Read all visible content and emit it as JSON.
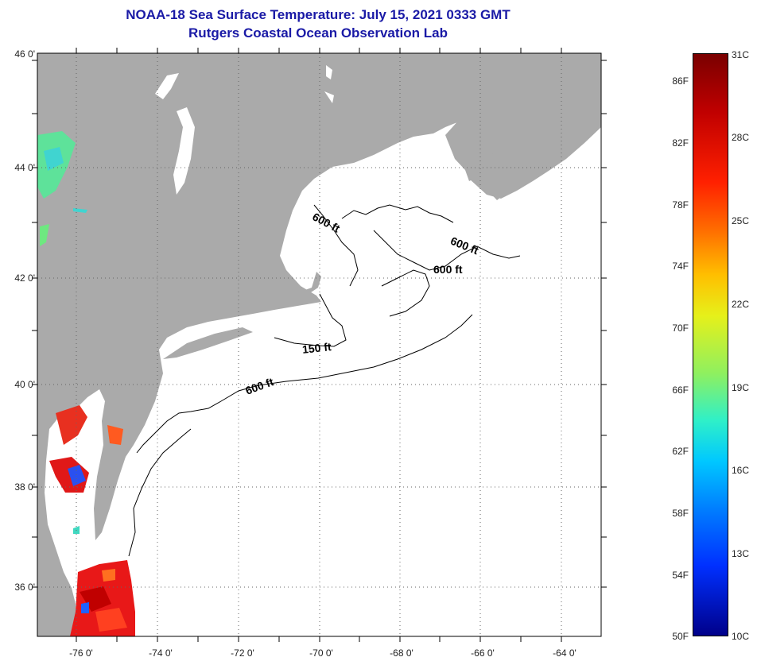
{
  "title": {
    "line1": "NOAA-18 Sea Surface Temperature:  July 15, 2021 0333 GMT",
    "line2": "Rutgers Coastal Ocean Observation Lab"
  },
  "map": {
    "lat_labels": [
      "46 0'",
      "44 0'",
      "42 0'",
      "40 0'",
      "38 0'",
      "36 0'"
    ],
    "lon_labels": [
      "-76 0'",
      "-74 0'",
      "-72 0'",
      "-70 0'",
      "-68 0'",
      "-66 0'",
      "-64 0'"
    ],
    "contour_labels": [
      "600 ft",
      "600 ft",
      "600 ft",
      "150 ft",
      "600 ft"
    ],
    "land_color": "#aaaaaa",
    "cloud_color": "#ffffff"
  },
  "colorbar": {
    "fahrenheit": [
      "86F",
      "82F",
      "78F",
      "74F",
      "70F",
      "66F",
      "62F",
      "58F",
      "54F",
      "50F"
    ],
    "celsius": [
      "31C",
      "28C",
      "25C",
      "22C",
      "19C",
      "16C",
      "13C",
      "10C"
    ]
  }
}
